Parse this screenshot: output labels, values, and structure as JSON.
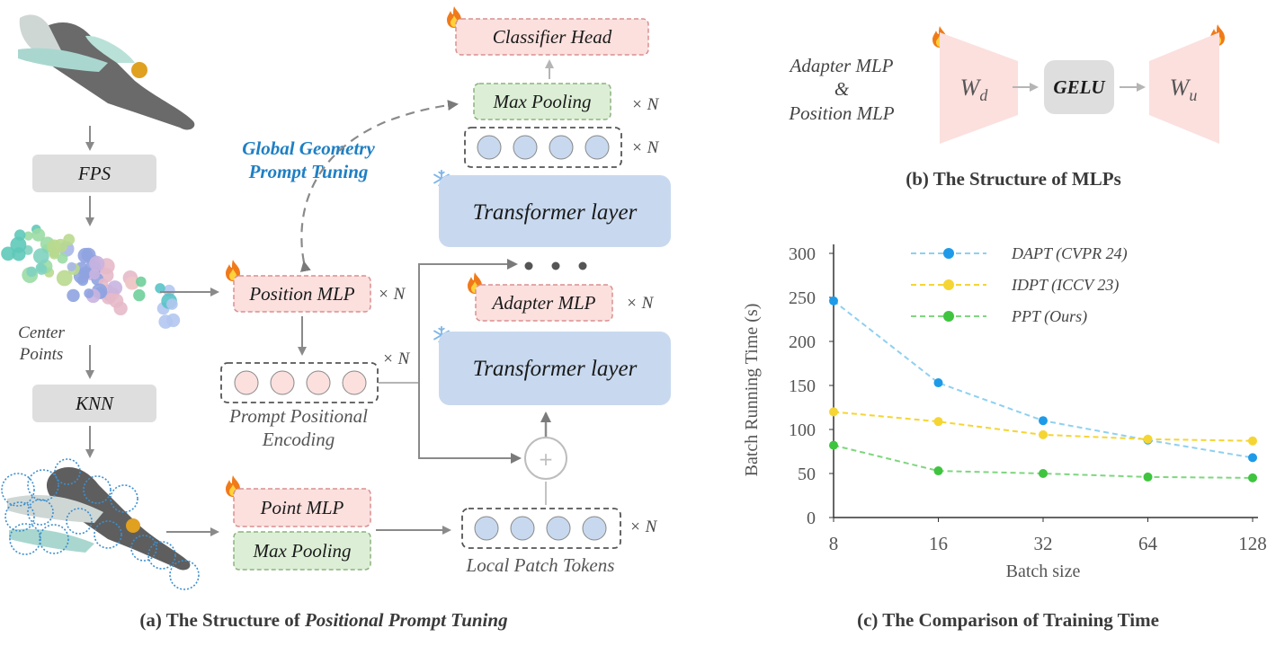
{
  "panel_a": {
    "steps": {
      "fps": "FPS",
      "knn": "KNN"
    },
    "center_points": "Center\nPoints",
    "prompt_title_line1": "Global Geometry",
    "prompt_title_line2": "Prompt Tuning",
    "position_mlp": "Position MLP",
    "prompt_encoding_line1": "Prompt Positional",
    "prompt_encoding_line2": "Encoding",
    "point_mlp": "Point MLP",
    "max_pooling_bottom": "Max Pooling",
    "local_patch_tokens": "Local Patch Tokens",
    "transformer_lower": "Transformer layer",
    "transformer_upper": "Transformer layer",
    "adapter_mlp": "Adapter MLP",
    "max_pooling_top": "Max Pooling",
    "classifier_head": "Classifier Head",
    "repeat": "× N",
    "plus": "+",
    "caption_prefix": "(a) The Structure of ",
    "caption_italic": "Positional Prompt Tuning"
  },
  "panel_b": {
    "left_label_line1": "Adapter MLP",
    "left_label_line2": "&",
    "left_label_line3": "Position MLP",
    "wd": "W",
    "wd_sub": "d",
    "gelu": "GELU",
    "wu": "W",
    "wu_sub": "u",
    "caption": "(b) The Structure of MLPs"
  },
  "panel_c": {
    "caption": "(c) The Comparison of Training Time"
  },
  "chart_data": {
    "type": "line",
    "x": [
      8,
      16,
      32,
      64,
      128
    ],
    "xscale": "log2",
    "xlabel": "Batch size",
    "ylabel": "Batch Running Time (s)",
    "ylim": [
      0,
      300
    ],
    "yticks": [
      0,
      50,
      100,
      150,
      200,
      250,
      300
    ],
    "legend_position": "top",
    "series": [
      {
        "name": "DAPT (CVPR 24)",
        "color": "#1e9be8",
        "line_color": "#8fd0f0",
        "values": [
          246,
          153,
          110,
          88,
          68
        ]
      },
      {
        "name": "IDPT (ICCV 23)",
        "color": "#f5d533",
        "line_color": "#f5d533",
        "values": [
          120,
          109,
          94,
          89,
          87
        ]
      },
      {
        "name": "PPT (Ours)",
        "color": "#3fc43f",
        "line_color": "#7fd67f",
        "values": [
          82,
          53,
          50,
          46,
          45
        ]
      }
    ]
  },
  "colors": {
    "pink_fill": "#fbe0de",
    "pink_border": "#d98f8f",
    "green_fill": "#dcefd6",
    "green_border": "#8db27f",
    "blue_fill": "#c8d9ef",
    "gray_fill": "#dedede",
    "accent_title": "#1e7fc4",
    "flame": "#f07a1a"
  }
}
